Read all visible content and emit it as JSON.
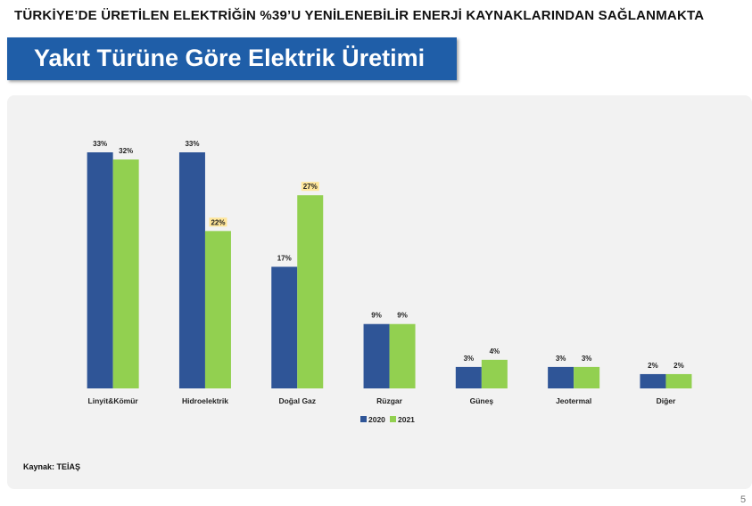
{
  "headline": "TÜRKİYE’DE ÜRETİLEN ELEKTRİĞİN %39’U YENİLENEBİLİR ENERJİ KAYNAKLARINDAN SAĞLANMAKTA",
  "slide_title": "Yakıt Türüne Göre Elektrik Üretimi",
  "source_note": "Kaynak: TEİAŞ",
  "page_number": "5",
  "colors": {
    "title_band": "#1f5ea8",
    "series_2020": "#2f5597",
    "series_2021": "#92d050",
    "highlight_label": "#ffe699"
  },
  "chart_data": {
    "type": "bar",
    "title": "Yakıt Türüne Göre Elektrik Üretimi",
    "xlabel": "",
    "ylabel": "",
    "ylim": [
      0,
      33
    ],
    "grid": false,
    "legend_position": "bottom",
    "categories": [
      "Linyit&Kömür",
      "Hidroelektrik",
      "Doğal Gaz",
      "Rüzgar",
      "Güneş",
      "Jeotermal",
      "Diğer"
    ],
    "series": [
      {
        "name": "2020",
        "color": "#2f5597",
        "values": [
          33,
          33,
          17,
          9,
          3,
          3,
          2
        ],
        "labels": [
          "33%",
          "33%",
          "17%",
          "9%",
          "3%",
          "3%",
          "2%"
        ],
        "highlighted": [
          false,
          false,
          false,
          false,
          false,
          false,
          false
        ]
      },
      {
        "name": "2021",
        "color": "#92d050",
        "values": [
          32,
          22,
          27,
          9,
          4,
          3,
          2
        ],
        "labels": [
          "32%",
          "22%",
          "27%",
          "9%",
          "4%",
          "3%",
          "2%"
        ],
        "highlighted": [
          false,
          true,
          true,
          false,
          false,
          false,
          false
        ]
      }
    ]
  }
}
